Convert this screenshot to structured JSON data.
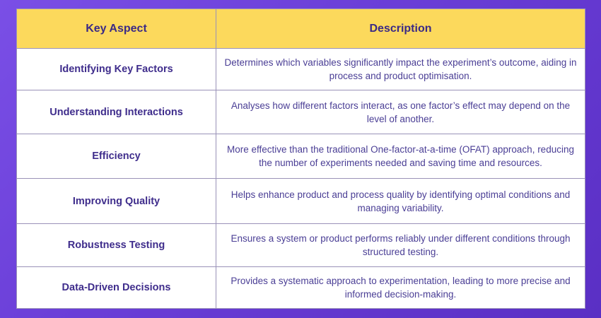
{
  "table": {
    "headers": [
      "Key Aspect",
      "Description"
    ],
    "rows": [
      {
        "aspect": "Identifying Key Factors",
        "description": "Determines which variables significantly impact the experiment’s outcome, aiding in process and product optimisation."
      },
      {
        "aspect": "Understanding Interactions",
        "description": "Analyses how different factors interact, as one factor’s effect may depend on the level of another."
      },
      {
        "aspect": "Efficiency",
        "description": "More effective than the traditional One-factor-at-a-time (OFAT) approach, reducing the number of experiments needed and saving time and resources."
      },
      {
        "aspect": "Improving Quality",
        "description": "Helps enhance product and process quality by identifying optimal conditions and managing variability."
      },
      {
        "aspect": "Robustness Testing",
        "description": "Ensures a system or product performs reliably under different conditions through structured testing."
      },
      {
        "aspect": "Data-Driven Decisions",
        "description": "Provides a systematic approach to experimentation, leading to more precise and informed decision-making."
      }
    ]
  },
  "colors": {
    "background": "#6b3fd8",
    "header_bg": "#fcd95c",
    "text_primary": "#3f2d8c"
  }
}
